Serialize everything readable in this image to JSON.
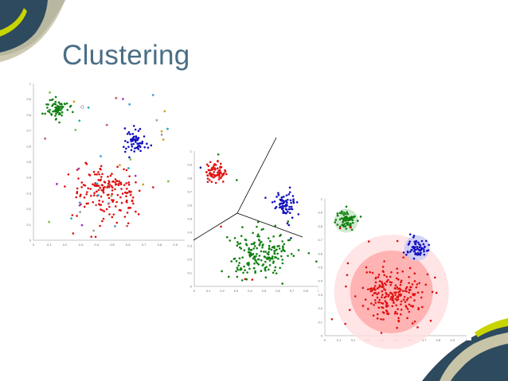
{
  "slide": {
    "title": "Clustering"
  },
  "colors": {
    "title": "#4a6e86",
    "accent_dark": "#2e4a5e",
    "accent_yellow": "#c8d400",
    "cluster_red": "#e01010",
    "cluster_green": "#108010",
    "cluster_blue": "#1010c0"
  },
  "chart_data": [
    {
      "type": "scatter",
      "xlim": [
        0,
        1
      ],
      "ylim": [
        0,
        1
      ],
      "xticks": [
        "0",
        "0.1",
        "0.2",
        "0.3",
        "0.4",
        "0.5",
        "0.6",
        "0.7",
        "0.8",
        "0.9"
      ],
      "yticks": [
        "0",
        "0.1",
        "0.2",
        "0.3",
        "0.4",
        "0.5",
        "0.6",
        "0.7",
        "0.8",
        "0.9",
        "1"
      ],
      "clusters": [
        {
          "color": "#108010",
          "cx": 0.15,
          "cy": 0.84,
          "sx": 0.035,
          "sy": 0.035,
          "n": 70
        },
        {
          "color": "#1010c0",
          "cx": 0.65,
          "cy": 0.64,
          "sx": 0.035,
          "sy": 0.04,
          "n": 60
        },
        {
          "color": "#e01010",
          "cx": 0.46,
          "cy": 0.3,
          "sx": 0.11,
          "sy": 0.09,
          "n": 170
        }
      ],
      "noise_colors": [
        "#d0a020",
        "#20b0b0",
        "#a040c0",
        "#80c040",
        "#40a0e0",
        "#c06060",
        "#a0a0a0"
      ]
    },
    {
      "type": "scatter",
      "xlim": [
        0,
        1
      ],
      "ylim": [
        0,
        1
      ],
      "xticks": [
        "0",
        "0.1",
        "0.2",
        "0.3",
        "0.4",
        "0.5",
        "0.6",
        "0.7",
        "0.8",
        "0.9"
      ],
      "yticks": [
        "0",
        "0.1",
        "0.2",
        "0.3",
        "0.4",
        "0.5",
        "0.6",
        "0.7",
        "0.8",
        "0.9",
        "1"
      ],
      "clusters": [
        {
          "color": "#e01010",
          "cx": 0.15,
          "cy": 0.84,
          "sx": 0.035,
          "sy": 0.035,
          "n": 70
        },
        {
          "color": "#1010c0",
          "cx": 0.65,
          "cy": 0.62,
          "sx": 0.04,
          "sy": 0.05,
          "n": 70
        },
        {
          "color": "#108010",
          "cx": 0.47,
          "cy": 0.25,
          "sx": 0.11,
          "sy": 0.09,
          "n": 190
        }
      ]
    },
    {
      "type": "scatter",
      "xlim": [
        0,
        1
      ],
      "ylim": [
        0,
        1
      ],
      "xticks": [
        "0",
        "0.1",
        "0.2",
        "0.3",
        "0.4",
        "0.5",
        "0.6",
        "0.7",
        "0.8",
        "0.9",
        "1"
      ],
      "yticks": [
        "0",
        "0.1",
        "0.2",
        "0.3",
        "0.4",
        "0.5",
        "0.6",
        "0.7",
        "0.8",
        "0.9",
        "1"
      ],
      "clusters": [
        {
          "color": "#108010",
          "cx": 0.15,
          "cy": 0.84,
          "sx": 0.035,
          "sy": 0.035,
          "n": 70
        },
        {
          "color": "#1010c0",
          "cx": 0.65,
          "cy": 0.64,
          "sx": 0.035,
          "sy": 0.04,
          "n": 60
        },
        {
          "color": "#e01010",
          "cx": 0.47,
          "cy": 0.3,
          "sx": 0.11,
          "sy": 0.1,
          "n": 200
        }
      ]
    }
  ]
}
